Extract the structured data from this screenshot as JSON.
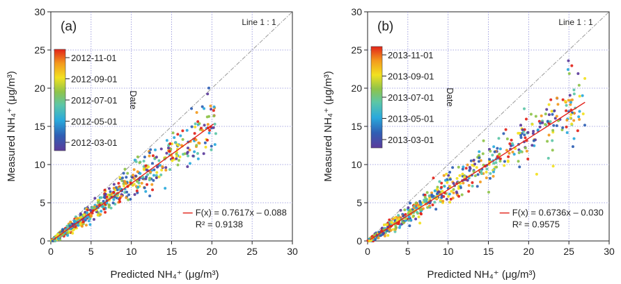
{
  "chart_data": [
    {
      "type": "scatter",
      "panel_label": "(a)",
      "xlabel": "Predicted NH₄⁺ (μg/m³)",
      "ylabel": "Measured NH₄⁺ (μg/m³)",
      "xlim": [
        0,
        30
      ],
      "ylim": [
        0,
        30
      ],
      "xticks": [
        "0",
        "5",
        "10",
        "15",
        "20",
        "25",
        "30"
      ],
      "yticks": [
        "0",
        "5",
        "10",
        "15",
        "20",
        "25",
        "30"
      ],
      "grid": true,
      "one_to_one_label": "Line 1 : 1",
      "fit": {
        "slope": 0.7617,
        "intercept": -0.088,
        "x_end": 20.2,
        "equation": "F(x) = 0.7617x – 0.088",
        "r2": "R² = 0.9138"
      },
      "colorbar": {
        "title": "Date",
        "ticks": [
          "2012-11-01",
          "2012-09-01",
          "2012-07-01",
          "2012-05-01",
          "2012-03-01"
        ]
      },
      "series": [
        {
          "name": "points",
          "seed": 7,
          "count": 650,
          "xmax": 20.5,
          "slope": 0.7617,
          "intercept": -0.088
        }
      ]
    },
    {
      "type": "scatter",
      "panel_label": "(b)",
      "xlabel": "Predicted NH₄⁺ (μg/m³)",
      "ylabel": "Measured NH₄⁺ (μg/m³)",
      "xlim": [
        0,
        30
      ],
      "ylim": [
        0,
        30
      ],
      "xticks": [
        "0",
        "5",
        "10",
        "15",
        "20",
        "25",
        "30"
      ],
      "yticks": [
        "0",
        "5",
        "10",
        "15",
        "20",
        "25",
        "30"
      ],
      "grid": true,
      "one_to_one_label": "Line 1 : 1",
      "fit": {
        "slope": 0.6736,
        "intercept": -0.03,
        "x_end": 27.0,
        "equation": "F(x) = 0.6736x – 0.030",
        "r2": "R² = 0.9575"
      },
      "colorbar": {
        "title": "Date",
        "ticks": [
          "2013-11-01",
          "2013-09-01",
          "2013-07-01",
          "2013-05-01",
          "2013-03-01"
        ]
      },
      "series": [
        {
          "name": "points",
          "seed": 13,
          "count": 650,
          "xmax": 27.0,
          "slope": 0.6736,
          "intercept": -0.03
        }
      ]
    }
  ]
}
